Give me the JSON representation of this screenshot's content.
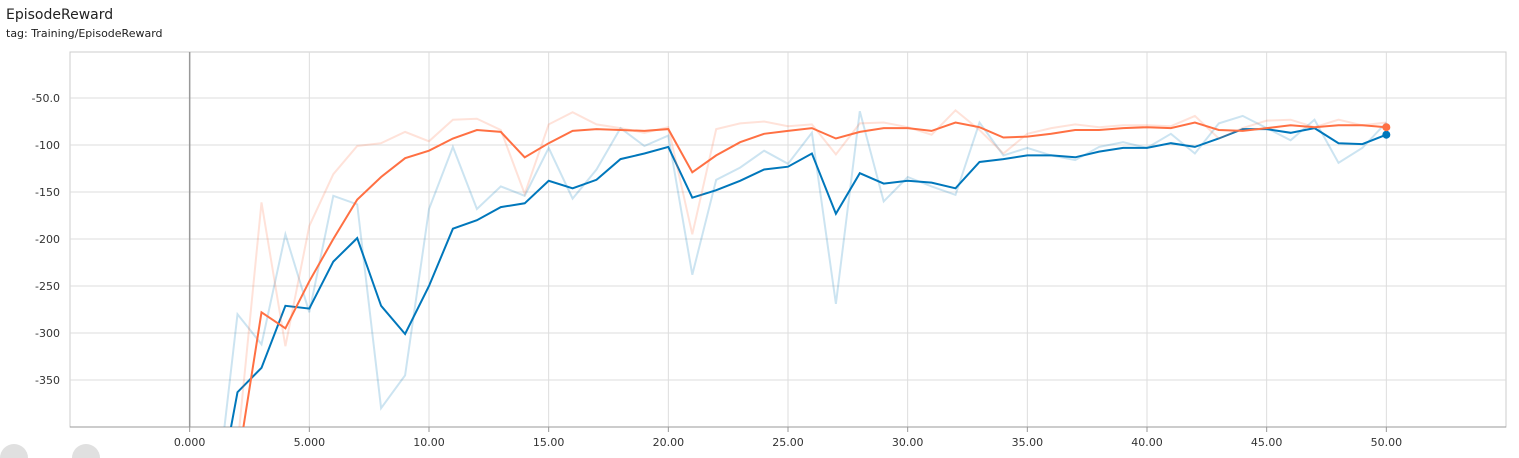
{
  "header": {
    "title": "EpisodeReward",
    "tag": "tag: Training/EpisodeReward"
  },
  "chart_data": {
    "type": "line",
    "xlim": [
      -5,
      55
    ],
    "ylim": [
      -400,
      -1
    ],
    "grid": true,
    "x_ticks": [
      "0.000",
      "5.000",
      "10.00",
      "15.00",
      "20.00",
      "25.00",
      "30.00",
      "35.00",
      "40.00",
      "45.00",
      "50.00"
    ],
    "x_tick_values": [
      0,
      5,
      10,
      15,
      20,
      25,
      30,
      35,
      40,
      45,
      50
    ],
    "y_ticks": [
      "-50.0",
      "-100",
      "-150",
      "-200",
      "-250",
      "-300",
      "-350"
    ],
    "y_tick_values": [
      -50,
      -100,
      -150,
      -200,
      -250,
      -300,
      -350
    ],
    "series": [
      {
        "color": "#0077bb",
        "x": [
          1,
          2,
          3,
          4,
          5,
          6,
          7,
          8,
          9,
          10,
          11,
          12,
          13,
          14,
          15,
          16,
          17,
          18,
          19,
          20,
          21,
          22,
          23,
          24,
          25,
          26,
          27,
          28,
          29,
          30,
          31,
          32,
          33,
          34,
          35,
          36,
          37,
          38,
          39,
          40,
          41,
          42,
          43,
          44,
          45,
          46,
          47,
          48,
          49,
          50
        ],
        "raw": [
          -500,
          -280,
          -312,
          -195,
          -278,
          -154,
          -163,
          -380,
          -345,
          -168,
          -102,
          -168,
          -144,
          -154,
          -103,
          -157,
          -126,
          -82,
          -101,
          -90,
          -238,
          -137,
          -124,
          -106,
          -120,
          -87,
          -269,
          -64,
          -160,
          -134,
          -144,
          -153,
          -76,
          -111,
          -103,
          -111,
          -116,
          -102,
          -97,
          -103,
          -88,
          -109,
          -77,
          -69,
          -82,
          -95,
          -73,
          -119,
          -103,
          -76
        ],
        "smoothed": [
          -500,
          -363,
          -337,
          -271,
          -274,
          -224,
          -199,
          -271,
          -301,
          -250,
          -189,
          -180,
          -166,
          -162,
          -138,
          -146,
          -137,
          -115,
          -109,
          -102,
          -156,
          -148,
          -138,
          -126,
          -123,
          -109,
          -173,
          -130,
          -141,
          -138,
          -140,
          -146,
          -118,
          -115,
          -111,
          -111,
          -113,
          -107,
          -103,
          -103,
          -98,
          -102,
          -93,
          -83,
          -83,
          -87,
          -82,
          -98,
          -99,
          -89
        ]
      },
      {
        "color": "#ff7043",
        "x": [
          1,
          2,
          3,
          4,
          5,
          6,
          7,
          8,
          9,
          10,
          11,
          12,
          13,
          14,
          15,
          16,
          17,
          18,
          19,
          20,
          21,
          22,
          23,
          24,
          25,
          26,
          27,
          28,
          29,
          30,
          31,
          32,
          33,
          34,
          35,
          36,
          37,
          38,
          39,
          40,
          41,
          42,
          43,
          44,
          45,
          46,
          47,
          48,
          49,
          50
        ],
        "raw": [
          -700,
          -420,
          -161,
          -314,
          -186,
          -131,
          -101,
          -98,
          -86,
          -96,
          -73,
          -72,
          -84,
          -152,
          -78,
          -65,
          -78,
          -82,
          -87,
          -81,
          -195,
          -83,
          -77,
          -75,
          -80,
          -78,
          -110,
          -77,
          -76,
          -81,
          -89,
          -63,
          -84,
          -109,
          -88,
          -82,
          -78,
          -81,
          -79,
          -79,
          -80,
          -69,
          -93,
          -82,
          -74,
          -73,
          -81,
          -73,
          -79,
          -76
        ],
        "smoothed": [
          -700,
          -440,
          -278,
          -295,
          -245,
          -200,
          -158,
          -134,
          -114,
          -106,
          -93,
          -84,
          -86,
          -113,
          -98,
          -85,
          -83,
          -84,
          -85,
          -83,
          -129,
          -111,
          -97,
          -88,
          -85,
          -82,
          -93,
          -86,
          -82,
          -82,
          -85,
          -76,
          -81,
          -92,
          -91,
          -88,
          -84,
          -84,
          -82,
          -81,
          -82,
          -76,
          -84,
          -85,
          -82,
          -79,
          -81,
          -79,
          -79,
          -81
        ]
      }
    ]
  }
}
